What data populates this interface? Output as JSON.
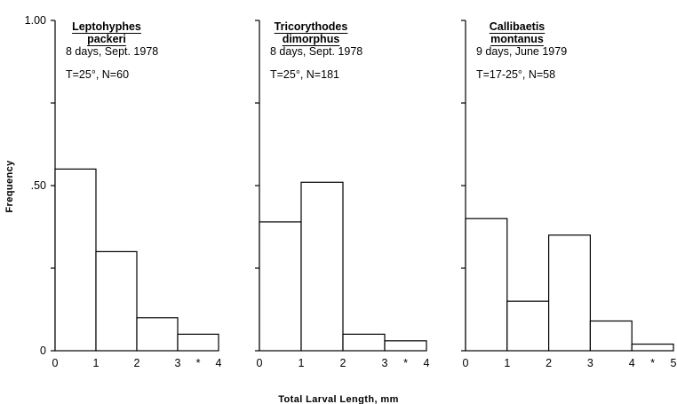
{
  "figure": {
    "ylabel": "Frequency",
    "xlabel": "Total Larval Length, mm"
  },
  "chart_data": [
    {
      "type": "bar",
      "title_line1": "Leptohyphes",
      "title_line2": "packeri",
      "info_line1": "8 days, Sept. 1978",
      "info_line2": "T=25°, N=60",
      "bin_edges": [
        0,
        1,
        2,
        3,
        4
      ],
      "values": [
        0.55,
        0.3,
        0.1,
        0.05
      ],
      "x_ticks": [
        0,
        1,
        2,
        3,
        4
      ],
      "x_tick_labels": [
        "0",
        "1",
        "2",
        "3",
        "4"
      ],
      "marker": "*",
      "ylim": [
        0,
        1.0
      ],
      "y_tick_labels": [
        "0",
        ".50",
        "1.00"
      ]
    },
    {
      "type": "bar",
      "title_line1": "Tricorythodes",
      "title_line2": "dimorphus",
      "info_line1": "8 days, Sept. 1978",
      "info_line2": "T=25°, N=181",
      "bin_edges": [
        0,
        1,
        2,
        3,
        4
      ],
      "values": [
        0.39,
        0.51,
        0.05,
        0.03
      ],
      "x_ticks": [
        0,
        1,
        2,
        3,
        4
      ],
      "x_tick_labels": [
        "0",
        "1",
        "2",
        "3",
        "4"
      ],
      "marker": "*",
      "ylim": [
        0,
        1.0
      ]
    },
    {
      "type": "bar",
      "title_line1": "Callibaetis",
      "title_line2": "montanus",
      "info_line1": "9 days, June 1979",
      "info_line2": "T=17-25°, N=58",
      "bin_edges": [
        0,
        1,
        2,
        3,
        4,
        5
      ],
      "values": [
        0.4,
        0.15,
        0.35,
        0.09,
        0.02
      ],
      "x_ticks": [
        0,
        1,
        2,
        3,
        4,
        5
      ],
      "x_tick_labels": [
        "0",
        "1",
        "2",
        "3",
        "4",
        "5"
      ],
      "marker": "*",
      "ylim": [
        0,
        1.0
      ]
    }
  ]
}
